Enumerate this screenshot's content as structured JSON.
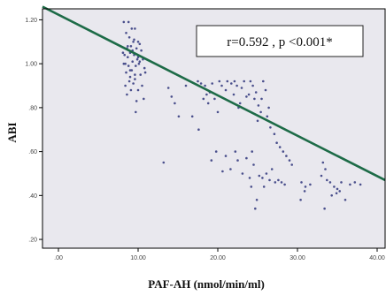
{
  "chart_data": {
    "type": "scatter",
    "title": "",
    "xlabel": "PAF-AH (nmol/min/ml)",
    "ylabel": "ABI",
    "xlim": [
      -2,
      41
    ],
    "ylim": [
      0.16,
      1.25
    ],
    "x_ticks": [
      0,
      10,
      20,
      30,
      40
    ],
    "x_tick_labels": [
      ".00",
      "10.00",
      "20.00",
      "30.00",
      "40.00"
    ],
    "y_ticks": [
      0.2,
      0.4,
      0.6,
      0.8,
      1.0,
      1.2
    ],
    "y_tick_labels": ".20|.40|.60|.80|1.00|1.20",
    "grid": false,
    "colors": {
      "background": "#e9e8ee",
      "points": "#4a4f8c",
      "line": "#1d6b47",
      "frame": "#000000"
    },
    "annotation": "r=0.592 , p <0.001*",
    "regression_line": {
      "x": [
        -2,
        41
      ],
      "y": [
        1.26,
        0.47
      ]
    },
    "series": [
      {
        "x": [
          8.2,
          8.8,
          9.2,
          8.5,
          9.6,
          8.9,
          9.4,
          10.2,
          9.1,
          8.6,
          9.8,
          10.4,
          9.0,
          8.3,
          9.5,
          10.0,
          8.7,
          9.9,
          10.6,
          9.3,
          8.4,
          10.1,
          9.7,
          8.8,
          10.8,
          9.2,
          8.5,
          9.6,
          10.3,
          9.0,
          8.9,
          9.4,
          10.5,
          9.1,
          8.6,
          10.7,
          9.8,
          8.2,
          9.5,
          10.0,
          8.7,
          9.3,
          8.1,
          10.9,
          9.6,
          10.2,
          9.0,
          8.4,
          9.7,
          10.0,
          13.8,
          14.2,
          14.6,
          15.1,
          16.0,
          17.5,
          17.9,
          18.4,
          18.6,
          18.2,
          18.8,
          19.3,
          19.0,
          19.6,
          20.2,
          20.5,
          20.0,
          21.2,
          21.7,
          21.0,
          22.1,
          22.4,
          22.0,
          22.8,
          23.3,
          23.0,
          23.6,
          22.6,
          23.9,
          24.1,
          24.4,
          24.8,
          24.6,
          25.1,
          25.4,
          25.0,
          25.7,
          26.0,
          25.5,
          26.4,
          26.2,
          26.6,
          27.1,
          27.4,
          27.8,
          28.2,
          28.6,
          29.0,
          29.3,
          13.2,
          16.8,
          17.6,
          19.2,
          19.8,
          20.6,
          21.0,
          21.6,
          22.2,
          22.5,
          23.1,
          23.6,
          24.0,
          24.3,
          24.2,
          24.5,
          24.9,
          24.7,
          25.2,
          25.6,
          25.8,
          26.1,
          26.5,
          26.8,
          27.2,
          27.6,
          28.0,
          28.4,
          30.5,
          30.9,
          30.4,
          31.0,
          31.6,
          33.2,
          33.5,
          33.0,
          33.7,
          34.1,
          34.6,
          35.0,
          34.3,
          35.5,
          36.0,
          36.6,
          37.2,
          37.9,
          33.4,
          34.9,
          35.3
        ],
        "y": [
          1.19,
          1.19,
          1.16,
          1.14,
          1.16,
          1.12,
          1.1,
          1.09,
          1.08,
          1.07,
          1.07,
          1.06,
          1.05,
          1.04,
          1.04,
          1.03,
          1.03,
          1.02,
          1.02,
          1.01,
          1.0,
          1.0,
          0.99,
          0.99,
          0.98,
          0.97,
          0.96,
          0.95,
          0.95,
          0.94,
          0.92,
          0.91,
          0.9,
          0.88,
          0.86,
          0.84,
          0.83,
          1.0,
          1.11,
          1.1,
          1.08,
          1.06,
          1.05,
          0.96,
          0.93,
          1.01,
          0.97,
          0.9,
          0.78,
          0.88,
          0.89,
          0.85,
          0.82,
          0.76,
          0.9,
          0.92,
          0.91,
          0.9,
          0.86,
          0.84,
          0.82,
          0.91,
          0.87,
          0.84,
          0.92,
          0.9,
          0.78,
          0.92,
          0.91,
          0.88,
          0.92,
          0.9,
          0.86,
          0.82,
          0.92,
          0.89,
          0.85,
          0.8,
          0.86,
          0.92,
          0.9,
          0.87,
          0.84,
          0.81,
          0.78,
          0.74,
          0.92,
          0.88,
          0.84,
          0.8,
          0.76,
          0.71,
          0.68,
          0.64,
          0.62,
          0.6,
          0.58,
          0.56,
          0.54,
          0.55,
          0.76,
          0.7,
          0.56,
          0.6,
          0.51,
          0.58,
          0.52,
          0.6,
          0.56,
          0.5,
          0.57,
          0.48,
          0.6,
          0.44,
          0.54,
          0.38,
          0.34,
          0.49,
          0.48,
          0.44,
          0.5,
          0.47,
          0.52,
          0.46,
          0.47,
          0.46,
          0.45,
          0.46,
          0.42,
          0.38,
          0.44,
          0.45,
          0.55,
          0.52,
          0.49,
          0.47,
          0.46,
          0.44,
          0.43,
          0.4,
          0.46,
          0.38,
          0.45,
          0.46,
          0.45,
          0.34,
          0.41,
          0.42
        ]
      }
    ]
  }
}
